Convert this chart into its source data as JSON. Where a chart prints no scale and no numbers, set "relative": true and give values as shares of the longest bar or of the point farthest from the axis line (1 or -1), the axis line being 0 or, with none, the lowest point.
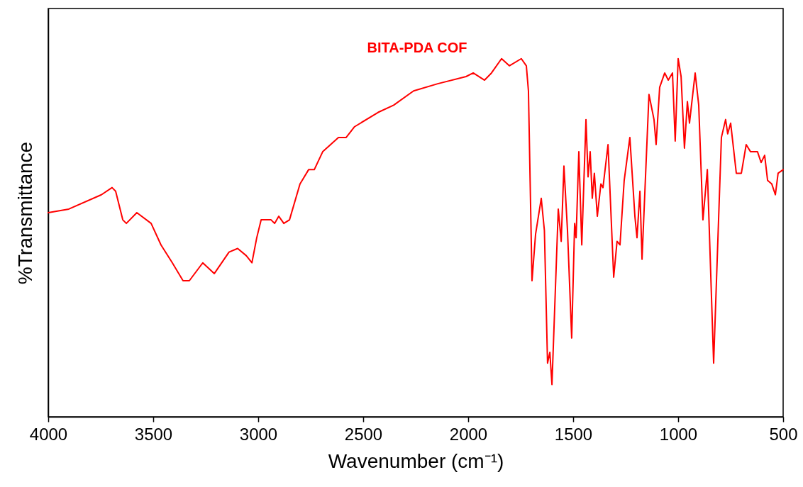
{
  "chart_data": {
    "type": "line",
    "relative": true,
    "xlabel": "Wavenumber (cm⁻¹)",
    "ylabel": "%Transmittance",
    "xlim": [
      4000,
      500
    ],
    "xticks": [
      4000,
      3500,
      3000,
      2500,
      2000,
      1500,
      1000,
      500
    ],
    "x": [
      4000,
      3902,
      3747,
      3696,
      3679,
      3645,
      3628,
      3578,
      3510,
      3463,
      3409,
      3358,
      3328,
      3264,
      3209,
      3139,
      3098,
      3057,
      3030,
      3007,
      2986,
      2939,
      2922,
      2902,
      2878,
      2851,
      2801,
      2760,
      2733,
      2693,
      2618,
      2581,
      2541,
      2429,
      2355,
      2260,
      2145,
      2010,
      1976,
      1922,
      1889,
      1841,
      1804,
      1747,
      1723,
      1713,
      1696,
      1679,
      1652,
      1637,
      1622,
      1611,
      1601,
      1571,
      1557,
      1544,
      1527,
      1507,
      1493,
      1486,
      1473,
      1459,
      1439,
      1429,
      1419,
      1409,
      1399,
      1385,
      1368,
      1358,
      1334,
      1307,
      1291,
      1277,
      1257,
      1230,
      1206,
      1196,
      1182,
      1172,
      1139,
      1115,
      1105,
      1088,
      1064,
      1047,
      1027,
      1014,
      1000,
      986,
      970,
      956,
      946,
      919,
      902,
      882,
      861,
      831,
      794,
      774,
      764,
      750,
      723,
      699,
      676,
      655,
      622,
      605,
      588,
      574,
      554,
      537,
      524,
      500
    ],
    "series": [
      {
        "name": "BITA-PDA COF",
        "color": "#ff0000",
        "values": [
          0.57,
          0.58,
          0.62,
          0.64,
          0.63,
          0.55,
          0.54,
          0.57,
          0.54,
          0.48,
          0.43,
          0.38,
          0.38,
          0.43,
          0.4,
          0.46,
          0.47,
          0.45,
          0.43,
          0.5,
          0.55,
          0.55,
          0.54,
          0.56,
          0.54,
          0.55,
          0.65,
          0.69,
          0.69,
          0.74,
          0.78,
          0.78,
          0.81,
          0.85,
          0.87,
          0.91,
          0.93,
          0.95,
          0.96,
          0.94,
          0.96,
          1.0,
          0.98,
          1.0,
          0.98,
          0.91,
          0.38,
          0.51,
          0.61,
          0.52,
          0.15,
          0.18,
          0.09,
          0.58,
          0.49,
          0.7,
          0.52,
          0.22,
          0.54,
          0.5,
          0.74,
          0.48,
          0.83,
          0.67,
          0.74,
          0.61,
          0.68,
          0.56,
          0.65,
          0.64,
          0.76,
          0.39,
          0.49,
          0.48,
          0.66,
          0.78,
          0.56,
          0.5,
          0.63,
          0.44,
          0.9,
          0.83,
          0.76,
          0.92,
          0.96,
          0.94,
          0.96,
          0.77,
          1.0,
          0.95,
          0.75,
          0.88,
          0.82,
          0.96,
          0.87,
          0.55,
          0.69,
          0.15,
          0.78,
          0.83,
          0.79,
          0.82,
          0.68,
          0.68,
          0.76,
          0.74,
          0.74,
          0.71,
          0.73,
          0.66,
          0.65,
          0.62,
          0.68,
          0.69
        ]
      }
    ]
  }
}
